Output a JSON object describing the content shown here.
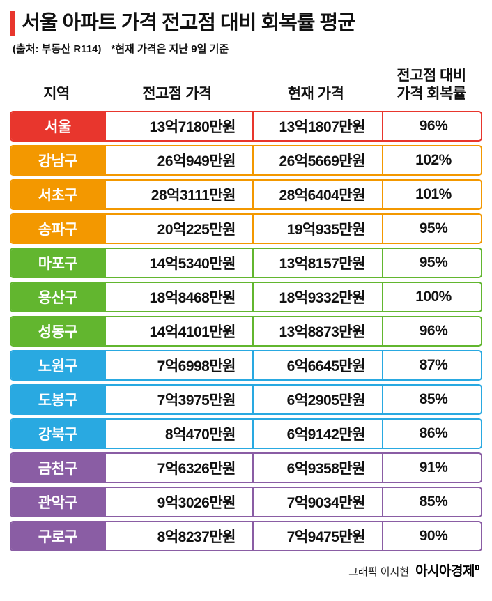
{
  "header": {
    "title": "서울 아파트 가격 전고점 대비 회복률 평균",
    "source": "(출처: 부동산 R114)",
    "note": "*현재 가격은 지난 9일 기준"
  },
  "table": {
    "col_region": "지역",
    "col_peak": "전고점 가격",
    "col_current": "현재 가격",
    "col_recovery_line1": "전고점 대비",
    "col_recovery_line2": "가격 회복률",
    "rows": [
      {
        "region": "서울",
        "peak": "13억7180만원",
        "current": "13억1807만원",
        "recovery": "96%",
        "color": "#e8362d"
      },
      {
        "region": "강남구",
        "peak": "26억949만원",
        "current": "26억5669만원",
        "recovery": "102%",
        "color": "#f39800"
      },
      {
        "region": "서초구",
        "peak": "28억3111만원",
        "current": "28억6404만원",
        "recovery": "101%",
        "color": "#f39800"
      },
      {
        "region": "송파구",
        "peak": "20억225만원",
        "current": "19억935만원",
        "recovery": "95%",
        "color": "#f39800"
      },
      {
        "region": "마포구",
        "peak": "14억5340만원",
        "current": "13억8157만원",
        "recovery": "95%",
        "color": "#62b62f"
      },
      {
        "region": "용산구",
        "peak": "18억8468만원",
        "current": "18억9332만원",
        "recovery": "100%",
        "color": "#62b62f"
      },
      {
        "region": "성동구",
        "peak": "14억4101만원",
        "current": "13억8873만원",
        "recovery": "96%",
        "color": "#62b62f"
      },
      {
        "region": "노원구",
        "peak": "7억6998만원",
        "current": "6억6645만원",
        "recovery": "87%",
        "color": "#29a9e1"
      },
      {
        "region": "도봉구",
        "peak": "7억3975만원",
        "current": "6억2905만원",
        "recovery": "85%",
        "color": "#29a9e1"
      },
      {
        "region": "강북구",
        "peak": "8억470만원",
        "current": "6억9142만원",
        "recovery": "86%",
        "color": "#29a9e1"
      },
      {
        "region": "금천구",
        "peak": "7억6326만원",
        "current": "6억9358만원",
        "recovery": "91%",
        "color": "#8a5da4"
      },
      {
        "region": "관악구",
        "peak": "9억3026만원",
        "current": "7억9034만원",
        "recovery": "85%",
        "color": "#8a5da4"
      },
      {
        "region": "구로구",
        "peak": "8억8237만원",
        "current": "7억9475만원",
        "recovery": "90%",
        "color": "#8a5da4"
      }
    ]
  },
  "footer": {
    "credit": "그래픽 이지현",
    "brand": "아시아경제"
  },
  "colors": {
    "title_bar": "#e8362d",
    "seoul_red": "#e8362d",
    "gangnam_orange": "#f39800",
    "mapo_green": "#62b62f",
    "nowon_blue": "#29a9e1",
    "geumcheon_purple": "#8a5da4"
  },
  "chart_data": {
    "type": "table",
    "title": "서울 아파트 가격 전고점 대비 회복률 평균",
    "source": "부동산 R114",
    "note": "현재 가격은 지난 9일 기준",
    "columns": [
      "지역",
      "전고점 가격",
      "현재 가격",
      "전고점 대비 가격 회복률"
    ],
    "unit": "만원",
    "regions": [
      "서울",
      "강남구",
      "서초구",
      "송파구",
      "마포구",
      "용산구",
      "성동구",
      "노원구",
      "도봉구",
      "강북구",
      "금천구",
      "관악구",
      "구로구"
    ],
    "series": [
      {
        "name": "전고점 가격(만원)",
        "values": [
          137180,
          260949,
          283111,
          200225,
          145340,
          188468,
          144101,
          76998,
          73975,
          80470,
          76326,
          93026,
          88237
        ]
      },
      {
        "name": "현재 가격(만원)",
        "values": [
          131807,
          265669,
          286404,
          190935,
          138157,
          189332,
          138873,
          66645,
          62905,
          69142,
          69358,
          79034,
          79475
        ]
      },
      {
        "name": "회복률(%)",
        "values": [
          96,
          102,
          101,
          95,
          95,
          100,
          96,
          87,
          85,
          86,
          91,
          85,
          90
        ]
      }
    ],
    "rows": [
      [
        "서울",
        "13억7180만원",
        "13억1807만원",
        "96%"
      ],
      [
        "강남구",
        "26억949만원",
        "26억5669만원",
        "102%"
      ],
      [
        "서초구",
        "28억3111만원",
        "28억6404만원",
        "101%"
      ],
      [
        "송파구",
        "20억225만원",
        "19억935만원",
        "95%"
      ],
      [
        "마포구",
        "14억5340만원",
        "13억8157만원",
        "95%"
      ],
      [
        "용산구",
        "18억8468만원",
        "18억9332만원",
        "100%"
      ],
      [
        "성동구",
        "14억4101만원",
        "13억8873만원",
        "96%"
      ],
      [
        "노원구",
        "7억6998만원",
        "6억6645만원",
        "87%"
      ],
      [
        "도봉구",
        "7억3975만원",
        "6억2905만원",
        "85%"
      ],
      [
        "강북구",
        "8억470만원",
        "6억9142만원",
        "86%"
      ],
      [
        "금천구",
        "7억6326만원",
        "6억9358만원",
        "91%"
      ],
      [
        "관악구",
        "9억3026만원",
        "7억9034만원",
        "85%"
      ],
      [
        "구로구",
        "8억8237만원",
        "7억9475만원",
        "90%"
      ]
    ]
  }
}
